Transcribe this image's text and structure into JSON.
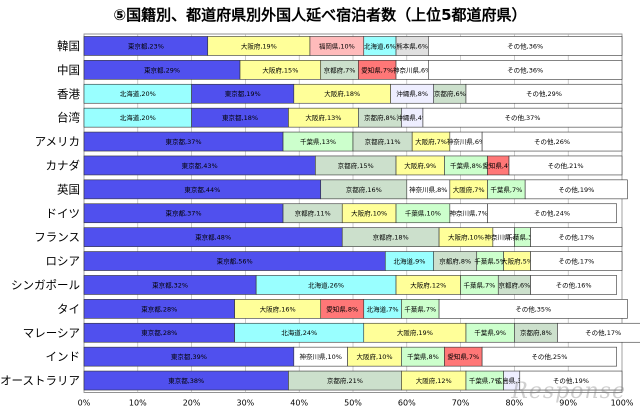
{
  "chart_data": {
    "type": "bar",
    "orientation": "horizontal",
    "stacked": true,
    "title": "⑤国籍別、都道府県別外国人延べ宿泊者数（上位5都道府県）",
    "xlim": [
      0,
      100
    ],
    "xticks": [
      "0%",
      "10%",
      "20%",
      "30%",
      "40%",
      "50%",
      "60%",
      "70%",
      "80%",
      "90%",
      "100%"
    ],
    "prefecture_colors": {
      "東京都": "#5050ee",
      "大阪府": "#ffff99",
      "福岡県": "#ffbbbb",
      "北海道": "#99ffff",
      "熊本県": "#e0e0e0",
      "その他": "#ffffff",
      "京都府": "#cce0cc",
      "愛知県": "#ff7777",
      "神奈川県": "#ffffff",
      "沖縄県": "#eeeeff",
      "千葉県": "#ccffcc",
      "広島県": "#eeeeff"
    },
    "rows": [
      {
        "category": "韓国",
        "segments": [
          {
            "name": "東京都",
            "value": 23,
            "label": "東京都,23%"
          },
          {
            "name": "大阪府",
            "value": 19,
            "label": "大阪府,19%"
          },
          {
            "name": "福岡県",
            "value": 10,
            "label": "福岡県,10%"
          },
          {
            "name": "北海道",
            "value": 6,
            "label": "北海道,6%"
          },
          {
            "name": "熊本県",
            "value": 6,
            "label": "熊本県,6%"
          },
          {
            "name": "その他",
            "value": 36,
            "label": "その他,36%"
          }
        ]
      },
      {
        "category": "中国",
        "segments": [
          {
            "name": "東京都",
            "value": 29,
            "label": "東京都,29%"
          },
          {
            "name": "大阪府",
            "value": 15,
            "label": "大阪府,15%"
          },
          {
            "name": "京都府",
            "value": 7,
            "label": "京都府,7%"
          },
          {
            "name": "愛知県",
            "value": 7,
            "label": "愛知県,7%"
          },
          {
            "name": "神奈川県",
            "value": 6,
            "label": "神奈川県,6%"
          },
          {
            "name": "その他",
            "value": 36,
            "label": "その他,36%"
          }
        ]
      },
      {
        "category": "香港",
        "segments": [
          {
            "name": "北海道",
            "value": 20,
            "label": "北海道,20%"
          },
          {
            "name": "東京都",
            "value": 19,
            "label": "東京都,19%"
          },
          {
            "name": "大阪府",
            "value": 18,
            "label": "大阪府,18%"
          },
          {
            "name": "沖縄県",
            "value": 8,
            "label": "沖縄県,8%"
          },
          {
            "name": "京都府",
            "value": 6,
            "label": "京都府,6%"
          },
          {
            "name": "その他",
            "value": 29,
            "label": "その他,29%"
          }
        ]
      },
      {
        "category": "台湾",
        "segments": [
          {
            "name": "北海道",
            "value": 20,
            "label": "北海道,20%"
          },
          {
            "name": "東京都",
            "value": 18,
            "label": "東京都,18%"
          },
          {
            "name": "大阪府",
            "value": 13,
            "label": "大阪府,13%"
          },
          {
            "name": "京都府",
            "value": 8,
            "label": "京都府,8%"
          },
          {
            "name": "沖縄県",
            "value": 4,
            "label": "沖縄県,4%"
          },
          {
            "name": "その他",
            "value": 37,
            "label": "その他,37%"
          }
        ]
      },
      {
        "category": "アメリカ",
        "segments": [
          {
            "name": "東京都",
            "value": 37,
            "label": "東京都,37%"
          },
          {
            "name": "千葉県",
            "value": 13,
            "label": "千葉県,13%"
          },
          {
            "name": "京都府",
            "value": 11,
            "label": "京都府,11%"
          },
          {
            "name": "大阪府",
            "value": 7,
            "label": "大阪府,7%"
          },
          {
            "name": "神奈川県",
            "value": 6,
            "label": "神奈川県,6%"
          },
          {
            "name": "その他",
            "value": 26,
            "label": "その他,26%"
          }
        ]
      },
      {
        "category": "カナダ",
        "segments": [
          {
            "name": "東京都",
            "value": 43,
            "label": "東京都,43%"
          },
          {
            "name": "京都府",
            "value": 15,
            "label": "京都府,15%"
          },
          {
            "name": "大阪府",
            "value": 9,
            "label": "大阪府,9%"
          },
          {
            "name": "千葉県",
            "value": 8,
            "label": "千葉県,8%"
          },
          {
            "name": "愛知県",
            "value": 4,
            "label": "愛知県,4%"
          },
          {
            "name": "その他",
            "value": 21,
            "label": "その他,21%"
          }
        ]
      },
      {
        "category": "英国",
        "segments": [
          {
            "name": "東京都",
            "value": 44,
            "label": "東京都,44%"
          },
          {
            "name": "京都府",
            "value": 16,
            "label": "京都府,16%"
          },
          {
            "name": "神奈川県",
            "value": 8,
            "label": "神奈川県,8%"
          },
          {
            "name": "大阪府",
            "value": 7,
            "label": "大阪府,7%"
          },
          {
            "name": "千葉県",
            "value": 7,
            "label": "千葉県,7%"
          },
          {
            "name": "その他",
            "value": 19,
            "label": "その他,19%"
          }
        ]
      },
      {
        "category": "ドイツ",
        "segments": [
          {
            "name": "東京都",
            "value": 37,
            "label": "東京都,37%"
          },
          {
            "name": "京都府",
            "value": 11,
            "label": "京都府,11%"
          },
          {
            "name": "大阪府",
            "value": 10,
            "label": "大阪府,10%"
          },
          {
            "name": "千葉県",
            "value": 10,
            "label": "千葉県,10%"
          },
          {
            "name": "神奈川県",
            "value": 7,
            "label": "神奈川県,7%"
          },
          {
            "name": "その他",
            "value": 24,
            "label": "その他,24%"
          }
        ]
      },
      {
        "category": "フランス",
        "segments": [
          {
            "name": "東京都",
            "value": 48,
            "label": "東京都,48%"
          },
          {
            "name": "京都府",
            "value": 18,
            "label": "京都府,18%"
          },
          {
            "name": "大阪府",
            "value": 10,
            "label": "大阪府,10%"
          },
          {
            "name": "神奈川県",
            "value": 4,
            "label": "神奈川県,4%"
          },
          {
            "name": "千葉県",
            "value": 3,
            "label": "千葉県,3%"
          },
          {
            "name": "その他",
            "value": 17,
            "label": "その他,17%"
          }
        ]
      },
      {
        "category": "ロシア",
        "segments": [
          {
            "name": "東京都",
            "value": 56,
            "label": "東京都,56%"
          },
          {
            "name": "北海道",
            "value": 9,
            "label": "北海道,9%"
          },
          {
            "name": "京都府",
            "value": 8,
            "label": "京都府,8%"
          },
          {
            "name": "千葉県",
            "value": 5,
            "label": "千葉県,5%"
          },
          {
            "name": "大阪府",
            "value": 5,
            "label": "大阪府,5%"
          },
          {
            "name": "その他",
            "value": 17,
            "label": "その他,17%"
          }
        ]
      },
      {
        "category": "シンガポール",
        "segments": [
          {
            "name": "東京都",
            "value": 32,
            "label": "東京都,32%"
          },
          {
            "name": "北海道",
            "value": 26,
            "label": "北海道,26%"
          },
          {
            "name": "大阪府",
            "value": 12,
            "label": "大阪府,12%"
          },
          {
            "name": "千葉県",
            "value": 7,
            "label": "千葉県,7%"
          },
          {
            "name": "京都府",
            "value": 6,
            "label": "京都府,6%"
          },
          {
            "name": "その他",
            "value": 16,
            "label": "その他,16%"
          }
        ]
      },
      {
        "category": "タイ",
        "segments": [
          {
            "name": "東京都",
            "value": 28,
            "label": "東京都,28%"
          },
          {
            "name": "大阪府",
            "value": 16,
            "label": "大阪府,16%"
          },
          {
            "name": "愛知県",
            "value": 8,
            "label": "愛知県,8%"
          },
          {
            "name": "北海道",
            "value": 7,
            "label": "北海道,7%"
          },
          {
            "name": "千葉県",
            "value": 7,
            "label": "千葉県,7%"
          },
          {
            "name": "その他",
            "value": 35,
            "label": "その他,35%"
          }
        ]
      },
      {
        "category": "マレーシア",
        "segments": [
          {
            "name": "東京都",
            "value": 28,
            "label": "東京都,28%"
          },
          {
            "name": "北海道",
            "value": 24,
            "label": "北海道,24%"
          },
          {
            "name": "大阪府",
            "value": 19,
            "label": "大阪府,19%"
          },
          {
            "name": "千葉県",
            "value": 9,
            "label": "千葉県,9%"
          },
          {
            "name": "京都府",
            "value": 8,
            "label": "京都府,8%"
          },
          {
            "name": "その他",
            "value": 17,
            "label": "その他,17%"
          }
        ]
      },
      {
        "category": "インド",
        "segments": [
          {
            "name": "東京都",
            "value": 39,
            "label": "東京都,39%"
          },
          {
            "name": "神奈川県",
            "value": 10,
            "label": "神奈川県,10%"
          },
          {
            "name": "大阪府",
            "value": 10,
            "label": "大阪府,10%"
          },
          {
            "name": "千葉県",
            "value": 8,
            "label": "千葉県,8%"
          },
          {
            "name": "愛知県",
            "value": 7,
            "label": "愛知県,7%"
          },
          {
            "name": "その他",
            "value": 25,
            "label": "その他,25%"
          }
        ]
      },
      {
        "category": "オーストラリア",
        "segments": [
          {
            "name": "東京都",
            "value": 38,
            "label": "東京都,38%"
          },
          {
            "name": "京都府",
            "value": 21,
            "label": "京都府,21%"
          },
          {
            "name": "大阪府",
            "value": 12,
            "label": "大阪府,12%"
          },
          {
            "name": "千葉県",
            "value": 7,
            "label": "千葉県,7%"
          },
          {
            "name": "広島県",
            "value": 3,
            "label": "広島県,3%"
          },
          {
            "name": "その他",
            "value": 19,
            "label": "その他,19%"
          }
        ]
      }
    ]
  },
  "watermark": "Response"
}
